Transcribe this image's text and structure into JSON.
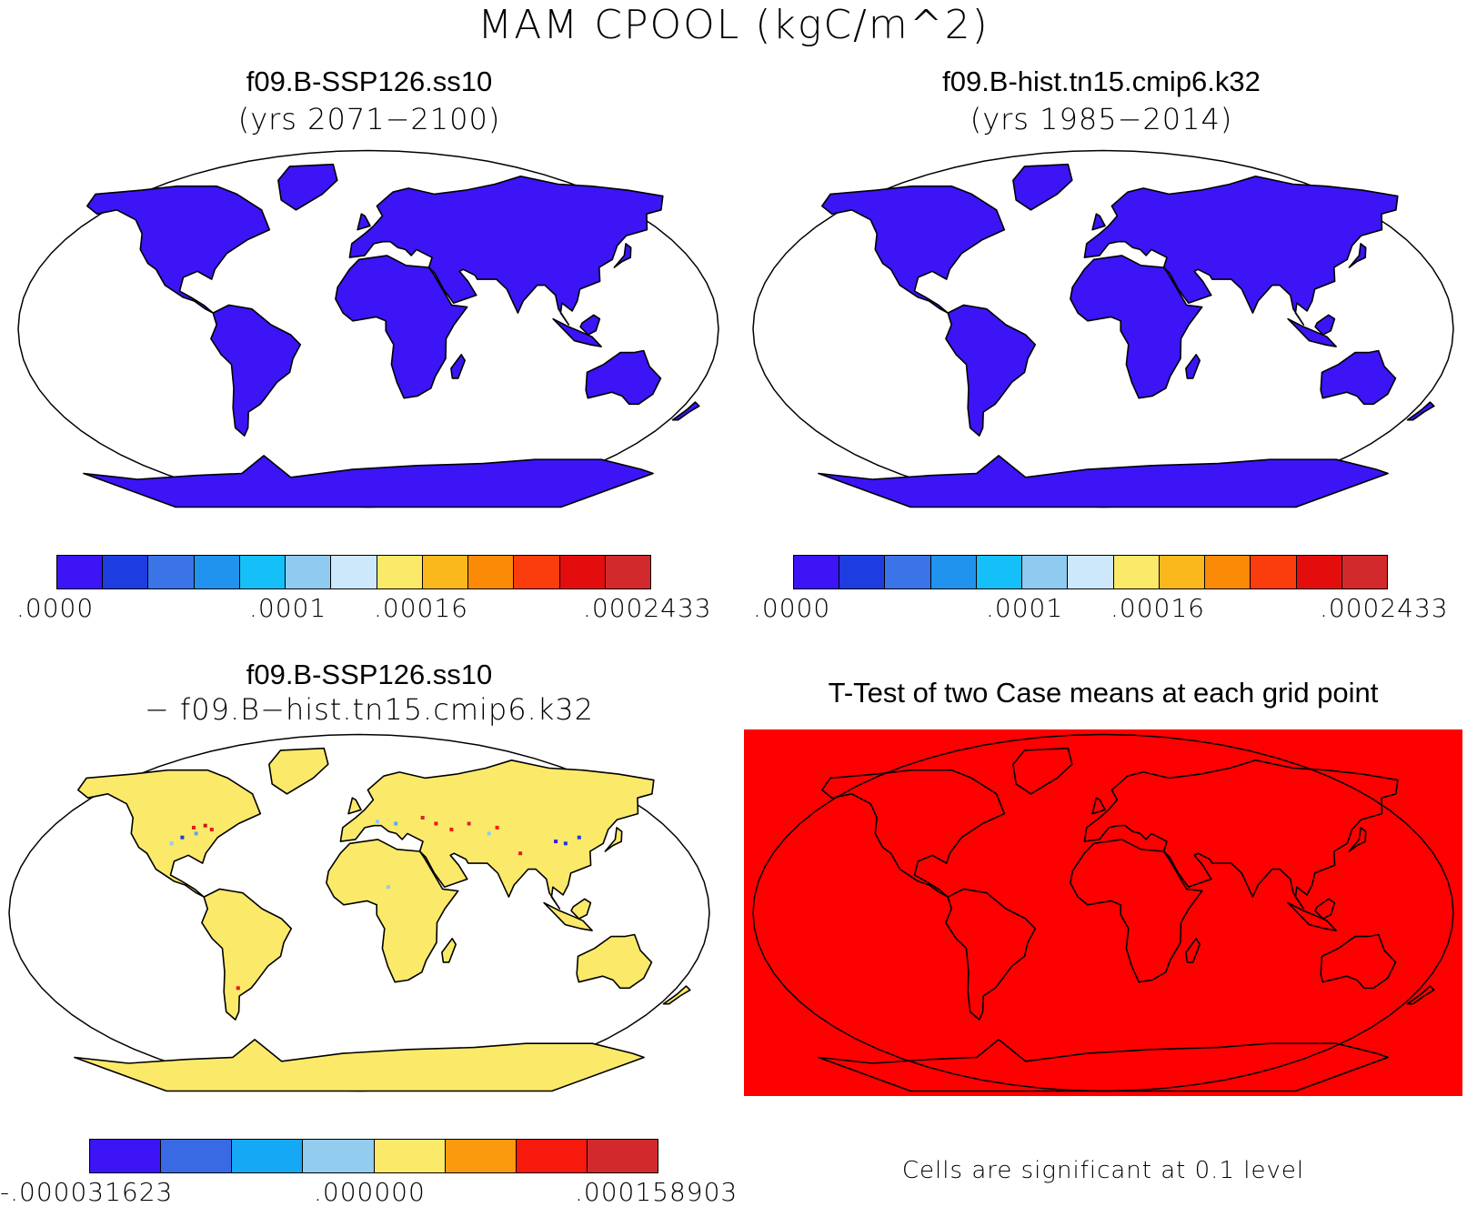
{
  "figure": {
    "title": "MAM CPOOL (kgC/m^2)"
  },
  "colors": {
    "land_blue": "#3c14f5",
    "land_yellow": "#fbe96a",
    "ttest_red": "#ff0000",
    "coast": "#000000"
  },
  "panels": {
    "future": {
      "title": "f09.B-SSP126.ss10",
      "subtitle": "(yrs 2071−2100)",
      "land_fill": "uniform lowest bin (.0000)",
      "colorbar": {
        "colors": [
          "#3c14f5",
          "#1e3de0",
          "#3a74e6",
          "#1f93ee",
          "#14c0f7",
          "#8fcbf0",
          "#cde7fb",
          "#fbe96a",
          "#fbb81c",
          "#fb8a06",
          "#fb3d0e",
          "#e30d0d",
          "#d2292d"
        ],
        "tick_labels": [
          ".0000",
          ".0001",
          ".00016",
          ".0002433"
        ]
      }
    },
    "historical": {
      "title": "f09.B-hist.tn15.cmip6.k32",
      "subtitle": "(yrs 1985−2014)",
      "land_fill": "uniform lowest bin (.0000)",
      "colorbar": {
        "colors": [
          "#3c14f5",
          "#1e3de0",
          "#3a74e6",
          "#1f93ee",
          "#14c0f7",
          "#8fcbf0",
          "#cde7fb",
          "#fbe96a",
          "#fbb81c",
          "#fb8a06",
          "#fb3d0e",
          "#e30d0d",
          "#d2292d"
        ],
        "tick_labels": [
          ".0000",
          ".0001",
          ".00016",
          ".0002433"
        ]
      }
    },
    "difference": {
      "title": "f09.B-SSP126.ss10",
      "subtitle": "− f09.B−hist.tn15.cmip6.k32",
      "land_fill": "near-zero bin (.000000)",
      "colorbar": {
        "colors": [
          "#3c14f5",
          "#3a6ae3",
          "#15a8f4",
          "#92cdef",
          "#fbe96a",
          "#fb9a0c",
          "#f8190d",
          "#d2292d"
        ],
        "tick_labels": [
          "-.000031623",
          ".000000",
          ".000158903"
        ]
      }
    },
    "ttest": {
      "title": "T-Test of two Case means at each grid point",
      "footnote": "Cells are significant at 0.1 level",
      "fill": "all cells significant"
    }
  }
}
